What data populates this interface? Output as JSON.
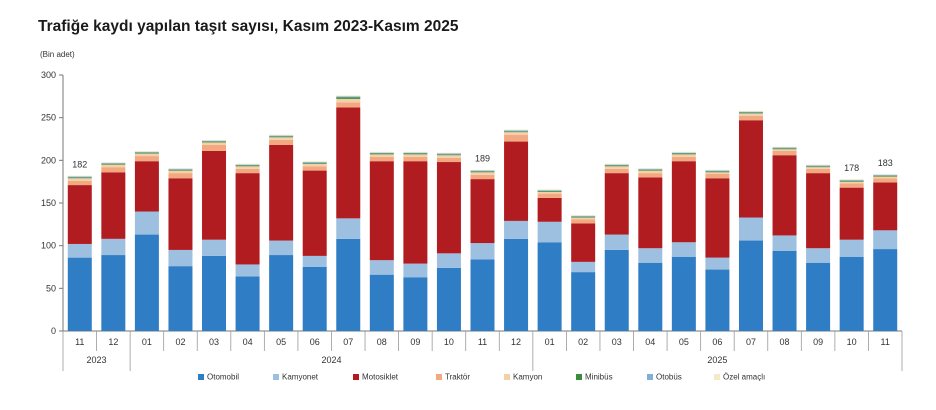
{
  "chart_data": {
    "type": "bar",
    "stacked": true,
    "title": "Trafiğe kaydı yapılan taşıt sayısı, Kasım 2023-Kasım 2025",
    "ylabel": "(Bin adet)",
    "ylim": [
      0,
      300
    ],
    "yticks": [
      "0",
      "50",
      "100",
      "150",
      "200",
      "250",
      "300"
    ],
    "categories": [
      "11",
      "12",
      "01",
      "02",
      "03",
      "04",
      "05",
      "06",
      "07",
      "08",
      "09",
      "10",
      "11",
      "12",
      "01",
      "02",
      "03",
      "04",
      "05",
      "06",
      "07",
      "08",
      "09",
      "10",
      "11"
    ],
    "year_groups": [
      {
        "label": "2023",
        "start": 0,
        "end": 1
      },
      {
        "label": "2024",
        "start": 2,
        "end": 13
      },
      {
        "label": "2025",
        "start": 14,
        "end": 24
      }
    ],
    "series": [
      {
        "name": "Otomobil",
        "color": "#2f7dc4",
        "values": [
          86,
          89,
          113,
          76,
          88,
          64,
          89,
          75,
          108,
          66,
          63,
          74,
          84,
          108,
          104,
          69,
          95,
          80,
          87,
          72,
          106,
          94,
          80,
          87,
          96
        ]
      },
      {
        "name": "Kamyonet",
        "color": "#9dbfe0",
        "values": [
          16,
          19,
          27,
          19,
          19,
          14,
          17,
          13,
          24,
          17,
          16,
          17,
          19,
          21,
          24,
          12,
          18,
          17,
          17,
          14,
          27,
          18,
          17,
          20,
          22
        ]
      },
      {
        "name": "Motosiklet",
        "color": "#b11c21",
        "values": [
          69,
          78,
          59,
          84,
          104,
          107,
          112,
          100,
          130,
          116,
          120,
          107,
          75,
          93,
          28,
          45,
          72,
          83,
          95,
          93,
          114,
          94,
          88,
          61,
          56
        ]
      },
      {
        "name": "Traktör",
        "color": "#f2a982",
        "values": [
          5,
          6,
          6,
          6,
          7,
          5,
          6,
          5,
          6,
          5,
          5,
          5,
          5,
          8,
          5,
          5,
          5,
          5,
          5,
          5,
          5,
          5,
          5,
          5,
          5
        ]
      },
      {
        "name": "Kamyon",
        "color": "#f5cfa6",
        "values": [
          3,
          3,
          3,
          3,
          3,
          3,
          3,
          3,
          4,
          3,
          3,
          3,
          3,
          3,
          2,
          2,
          3,
          3,
          3,
          2,
          3,
          2,
          2,
          2,
          2
        ]
      },
      {
        "name": "Minibüs",
        "color": "#3c8c40",
        "values": [
          1,
          1,
          1,
          1,
          1,
          1,
          1,
          1,
          2,
          1,
          1,
          1,
          1,
          1,
          1,
          1,
          1,
          1,
          1,
          1,
          1,
          1,
          1,
          1,
          1
        ]
      },
      {
        "name": "Otobüs",
        "color": "#7fb0da",
        "values": [
          1,
          1,
          1,
          1,
          1,
          1,
          1,
          1,
          1,
          1,
          1,
          1,
          1,
          1,
          1,
          1,
          1,
          1,
          1,
          1,
          1,
          1,
          1,
          1,
          1
        ]
      },
      {
        "name": "Özel amaçlı",
        "color": "#f6e9c9",
        "values": [
          1,
          1,
          1,
          1,
          1,
          1,
          1,
          1,
          1,
          1,
          1,
          1,
          1,
          1,
          1,
          1,
          1,
          1,
          1,
          1,
          1,
          1,
          1,
          1,
          1
        ]
      }
    ],
    "data_labels": [
      {
        "index": 0,
        "text": "182"
      },
      {
        "index": 12,
        "text": "189"
      },
      {
        "index": 23,
        "text": "178"
      },
      {
        "index": 24,
        "text": "183"
      }
    ],
    "legend_position": "bottom",
    "grid": false
  }
}
